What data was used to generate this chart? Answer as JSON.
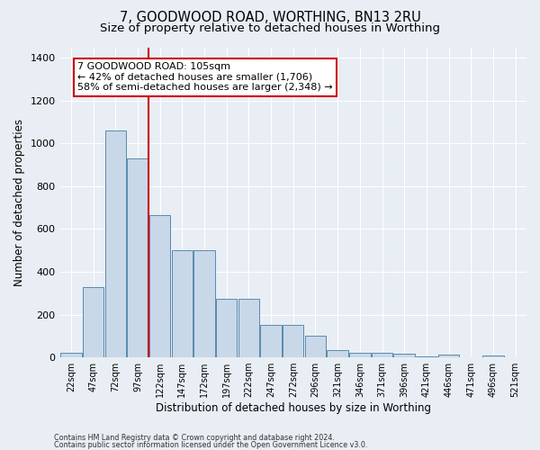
{
  "title_line1": "7, GOODWOOD ROAD, WORTHING, BN13 2RU",
  "title_line2": "Size of property relative to detached houses in Worthing",
  "xlabel": "Distribution of detached houses by size in Worthing",
  "ylabel": "Number of detached properties",
  "categories": [
    "22sqm",
    "47sqm",
    "72sqm",
    "97sqm",
    "122sqm",
    "147sqm",
    "172sqm",
    "197sqm",
    "222sqm",
    "247sqm",
    "272sqm",
    "296sqm",
    "321sqm",
    "346sqm",
    "371sqm",
    "396sqm",
    "421sqm",
    "446sqm",
    "471sqm",
    "496sqm",
    "521sqm"
  ],
  "values": [
    20,
    330,
    1060,
    930,
    665,
    500,
    500,
    275,
    275,
    150,
    150,
    100,
    32,
    20,
    20,
    17,
    4,
    13,
    2,
    10,
    2
  ],
  "bar_color": "#c8d8e8",
  "bar_edge_color": "#5a8ab0",
  "vline_x_index": 3,
  "vline_color": "#cc0000",
  "annotation_line1": "7 GOODWOOD ROAD: 105sqm",
  "annotation_line2": "← 42% of detached houses are smaller (1,706)",
  "annotation_line3": "58% of semi-detached houses are larger (2,348) →",
  "annotation_box_color": "#ffffff",
  "annotation_box_edge": "#cc0000",
  "ylim": [
    0,
    1450
  ],
  "yticks": [
    0,
    200,
    400,
    600,
    800,
    1000,
    1200,
    1400
  ],
  "footer_line1": "Contains HM Land Registry data © Crown copyright and database right 2024.",
  "footer_line2": "Contains public sector information licensed under the Open Government Licence v3.0.",
  "background_color": "#e8eef4",
  "plot_background": "#e8eef4",
  "grid_color": "#ffffff",
  "title_fontsize": 10.5,
  "subtitle_fontsize": 9.5,
  "axis_label_fontsize": 8.5,
  "tick_fontsize": 8,
  "annotation_fontsize": 8
}
